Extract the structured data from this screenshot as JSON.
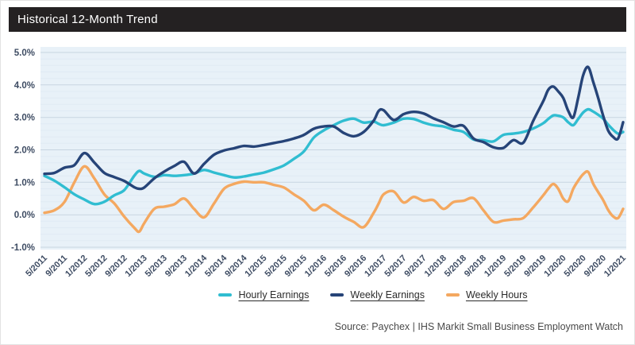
{
  "header": {
    "title": "Historical 12-Month Trend"
  },
  "source_note": "Source: Paychex | IHS Markit Small Business Employment Watch",
  "colors": {
    "header_bg": "#242122",
    "plot_bg": "#e8f1f8",
    "grid_major": "#c7d5e1",
    "grid_minor": "#dfeaf4",
    "axis_label": "#3e4c63",
    "hourly_earnings": "#30bdd1",
    "weekly_earnings": "#264478",
    "weekly_hours": "#f4a860"
  },
  "chart_data": {
    "type": "line",
    "title": "Historical 12-Month Trend",
    "xlabel": "",
    "ylabel": "",
    "ylim": [
      -1.0,
      5.0
    ],
    "y_ticks": [
      "5.0%",
      "4.0%",
      "3.0%",
      "2.0%",
      "1.0%",
      "0.0%",
      "-1.0%"
    ],
    "grid": {
      "major_step_pct": 1.0,
      "minor_step_pct": 0.2,
      "gridlines": "horizontal"
    },
    "legend_position": "bottom-center",
    "x_unit": "months since 5/2011 (monthly year-over-year % change)",
    "categories": [
      "5/2011",
      "9/2011",
      "1/2012",
      "5/2012",
      "9/2012",
      "1/2013",
      "5/2013",
      "9/2013",
      "1/2014",
      "5/2014",
      "9/2014",
      "1/2015",
      "5/2015",
      "9/2015",
      "1/2016",
      "5/2016",
      "9/2016",
      "1/2017",
      "5/2017",
      "9/2017",
      "1/2018",
      "5/2018",
      "9/2018",
      "1/2019",
      "5/2019",
      "9/2019",
      "1/2020",
      "5/2020",
      "9/2020",
      "1/2021"
    ],
    "category_month_index_step": 4,
    "x": [
      0,
      2,
      4,
      6,
      8,
      10,
      12,
      14,
      16,
      18,
      19,
      20,
      22,
      24,
      26,
      28,
      30,
      32,
      34,
      36,
      38,
      40,
      42,
      44,
      46,
      48,
      50,
      52,
      54,
      56,
      58,
      60,
      62,
      64,
      66,
      67,
      68,
      70,
      72,
      74,
      76,
      78,
      80,
      82,
      84,
      86,
      88,
      90,
      92,
      94,
      96,
      98,
      100,
      101,
      102,
      103,
      104,
      105,
      106,
      107,
      108,
      109,
      110,
      111,
      112,
      113,
      114,
      115,
      116
    ],
    "series": [
      {
        "name": "Hourly Earnings",
        "color": "#30bdd1",
        "values": [
          1.2,
          1.05,
          0.85,
          0.63,
          0.47,
          0.33,
          0.4,
          0.6,
          0.76,
          1.2,
          1.35,
          1.27,
          1.17,
          1.22,
          1.2,
          1.22,
          1.27,
          1.38,
          1.3,
          1.22,
          1.15,
          1.18,
          1.24,
          1.3,
          1.4,
          1.52,
          1.72,
          1.95,
          2.38,
          2.6,
          2.76,
          2.9,
          2.96,
          2.84,
          2.87,
          2.8,
          2.76,
          2.84,
          2.96,
          2.95,
          2.84,
          2.76,
          2.72,
          2.62,
          2.55,
          2.32,
          2.3,
          2.26,
          2.46,
          2.5,
          2.55,
          2.66,
          2.82,
          2.95,
          3.06,
          3.05,
          3.0,
          2.85,
          2.76,
          2.95,
          3.15,
          3.25,
          3.18,
          3.08,
          2.96,
          2.78,
          2.62,
          2.5,
          2.55
        ]
      },
      {
        "name": "Weekly Earnings",
        "color": "#264478",
        "values": [
          1.26,
          1.29,
          1.45,
          1.53,
          1.9,
          1.61,
          1.29,
          1.16,
          1.04,
          0.85,
          0.8,
          0.84,
          1.12,
          1.33,
          1.5,
          1.63,
          1.27,
          1.57,
          1.85,
          1.98,
          2.05,
          2.12,
          2.1,
          2.15,
          2.21,
          2.27,
          2.35,
          2.46,
          2.65,
          2.72,
          2.72,
          2.52,
          2.42,
          2.55,
          2.9,
          3.2,
          3.22,
          2.92,
          3.1,
          3.17,
          3.12,
          2.97,
          2.85,
          2.72,
          2.74,
          2.35,
          2.24,
          2.08,
          2.06,
          2.3,
          2.22,
          2.9,
          3.5,
          3.85,
          3.95,
          3.8,
          3.6,
          3.2,
          3.0,
          3.6,
          4.3,
          4.55,
          4.1,
          3.6,
          3.05,
          2.6,
          2.4,
          2.35,
          2.85
        ]
      },
      {
        "name": "Weekly Hours",
        "color": "#f4a860",
        "values": [
          0.06,
          0.14,
          0.39,
          1.0,
          1.49,
          1.12,
          0.63,
          0.35,
          -0.06,
          -0.4,
          -0.52,
          -0.26,
          0.18,
          0.25,
          0.32,
          0.5,
          0.18,
          -0.08,
          0.35,
          0.8,
          0.95,
          1.02,
          1.0,
          1.0,
          0.92,
          0.84,
          0.63,
          0.43,
          0.14,
          0.31,
          0.14,
          -0.06,
          -0.22,
          -0.38,
          0.06,
          0.35,
          0.63,
          0.72,
          0.38,
          0.55,
          0.43,
          0.45,
          0.18,
          0.39,
          0.43,
          0.51,
          0.14,
          -0.22,
          -0.18,
          -0.14,
          -0.1,
          0.23,
          0.6,
          0.8,
          0.95,
          0.8,
          0.5,
          0.42,
          0.8,
          1.05,
          1.25,
          1.32,
          0.96,
          0.7,
          0.45,
          0.15,
          -0.05,
          -0.1,
          0.18
        ]
      }
    ]
  },
  "legend": {
    "items": [
      {
        "label": "Hourly Earnings",
        "color": "#30bdd1"
      },
      {
        "label": "Weekly Earnings",
        "color": "#264478"
      },
      {
        "label": "Weekly Hours",
        "color": "#f4a860"
      }
    ]
  }
}
